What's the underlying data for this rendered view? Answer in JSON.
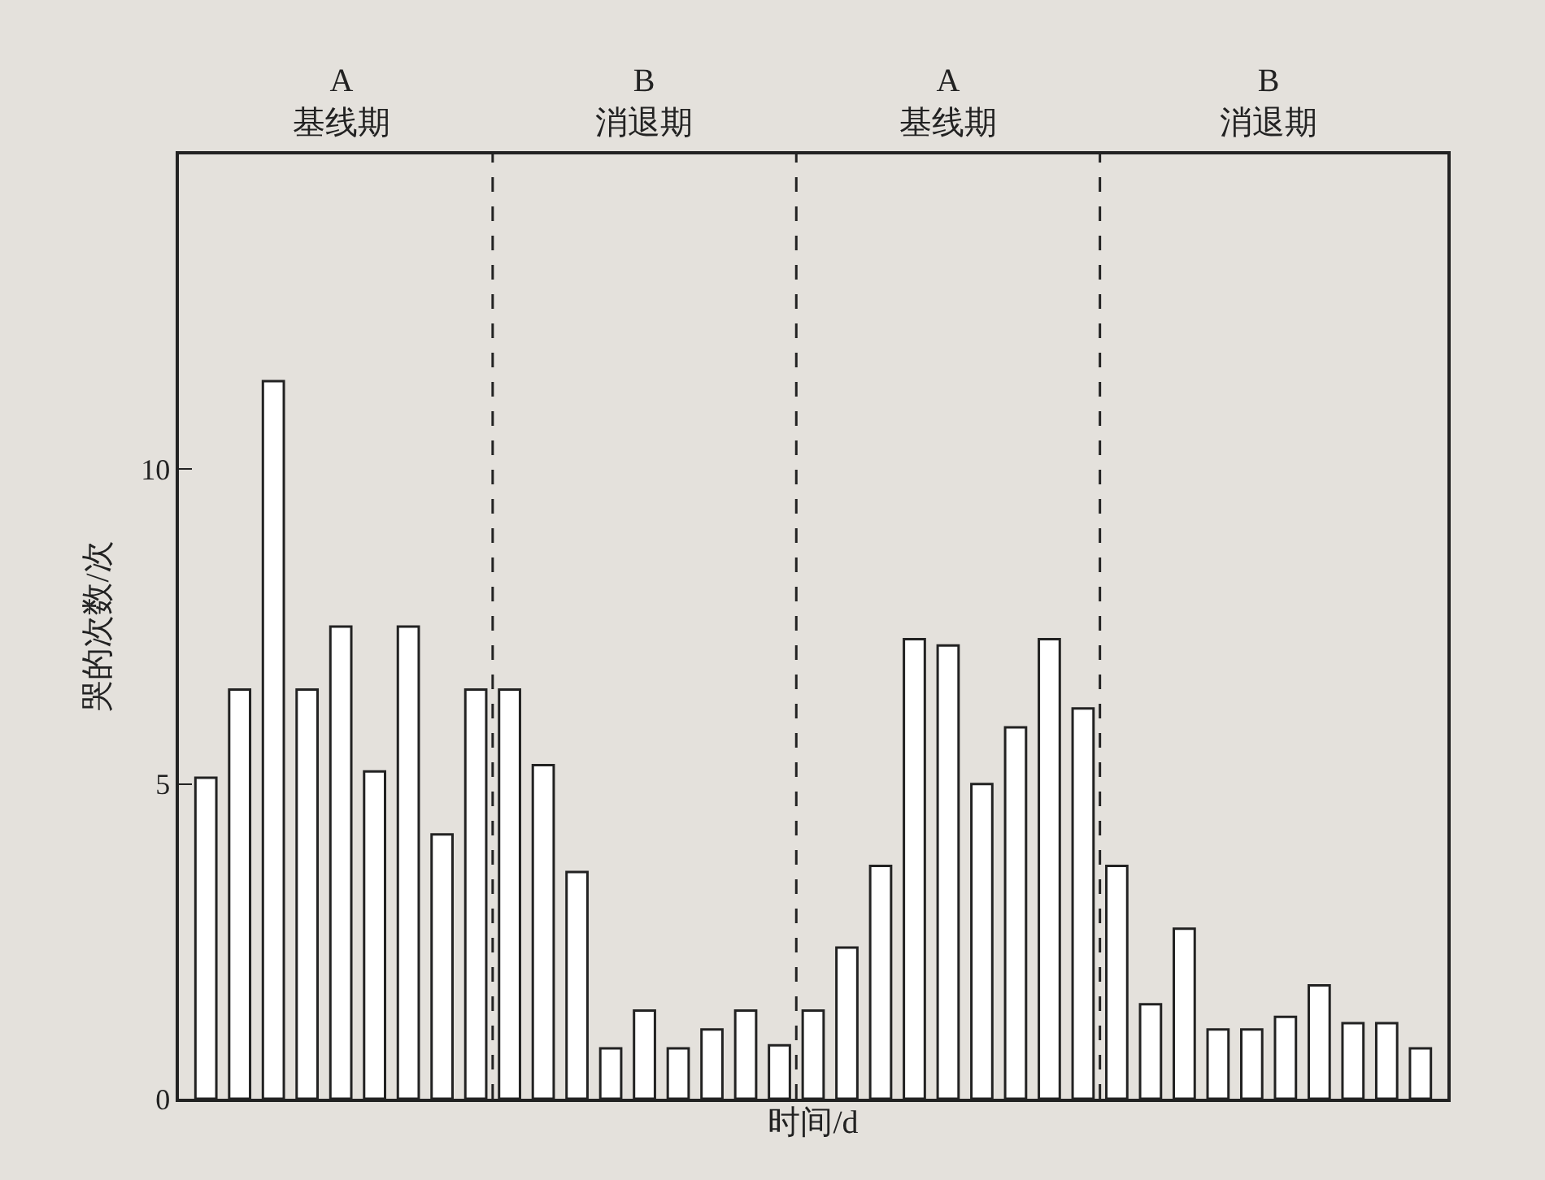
{
  "chart_data": {
    "type": "bar",
    "xlabel": "时间/d",
    "ylabel": "哭的次数/次",
    "categories": [
      null,
      null,
      null,
      null,
      null,
      null,
      null,
      null,
      null,
      null,
      null,
      null,
      null,
      null,
      null,
      null,
      null,
      null,
      null,
      null,
      null,
      null,
      null,
      null,
      null,
      null,
      null,
      null,
      null,
      null,
      null,
      null,
      null,
      null,
      null,
      null,
      null
    ],
    "values": [
      5.1,
      6.5,
      11.4,
      6.5,
      7.5,
      5.2,
      7.5,
      4.2,
      6.5,
      6.5,
      5.3,
      3.6,
      0.8,
      1.4,
      0.8,
      1.1,
      1.4,
      0.85,
      1.4,
      2.4,
      3.7,
      7.3,
      7.2,
      5.0,
      5.9,
      7.3,
      6.2,
      3.7,
      1.5,
      2.7,
      1.1,
      1.1,
      1.3,
      1.8,
      1.2,
      1.2,
      0.8
    ],
    "color": "#ffffff",
    "ylim": [
      0,
      15
    ],
    "yticks": [
      0,
      5,
      10
    ],
    "grid": false,
    "tick_labels": "y",
    "annotations": [
      "A\n基线期",
      "B\n消退期",
      "A\n基线期",
      "B\n消退期"
    ]
  }
}
